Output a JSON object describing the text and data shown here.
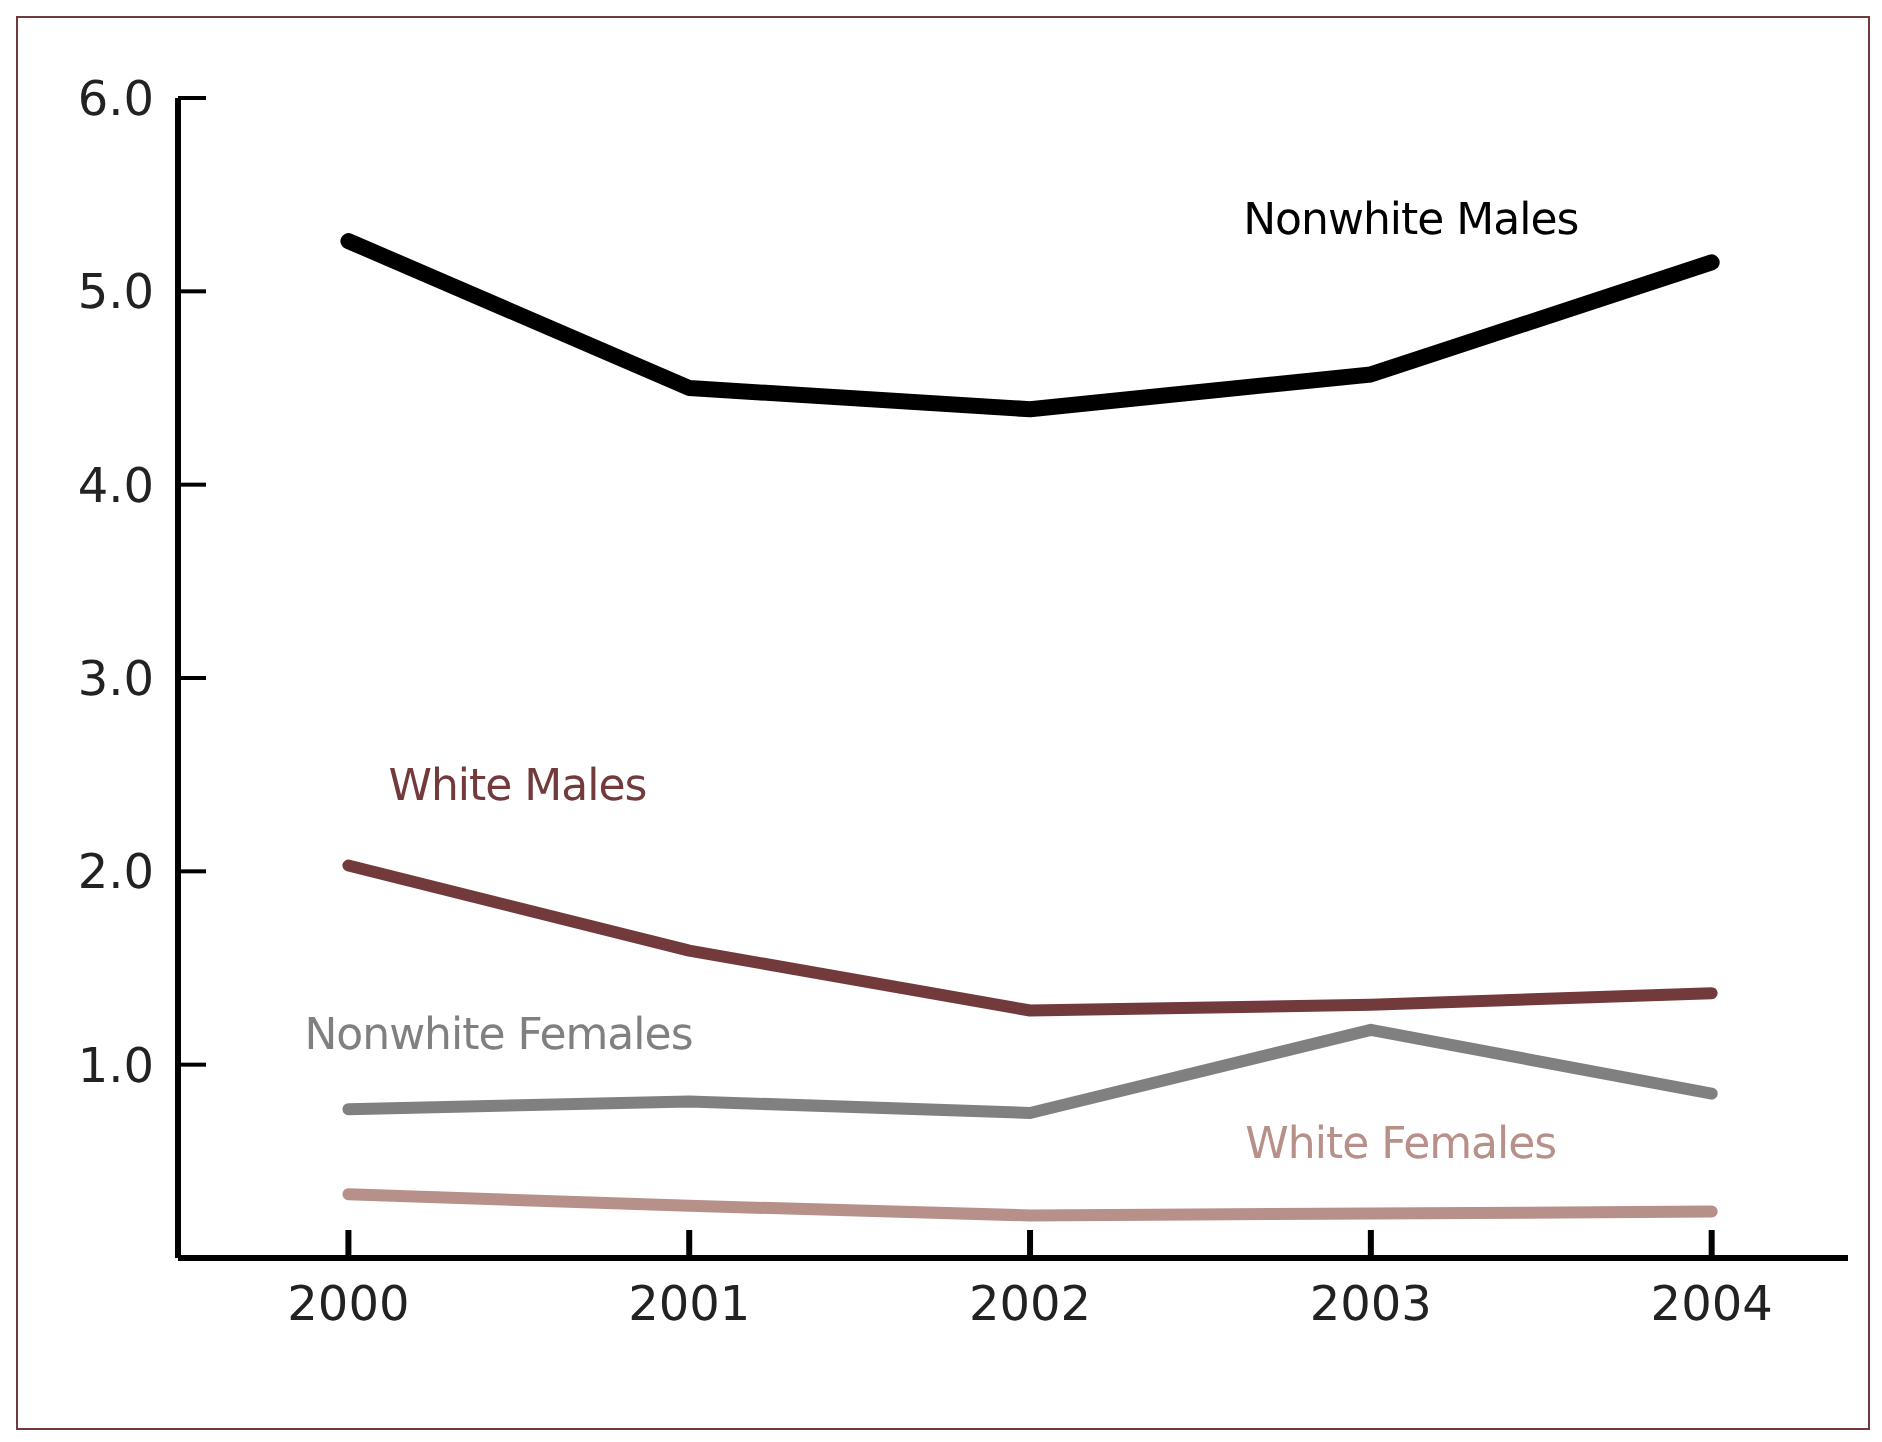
{
  "chart_data": {
    "type": "line",
    "categories": [
      "2000",
      "2001",
      "2002",
      "2003",
      "2004"
    ],
    "series": [
      {
        "name": "Nonwhite Males",
        "color": "#000000",
        "values": [
          5.26,
          4.5,
          4.39,
          4.57,
          5.15
        ]
      },
      {
        "name": "White Males",
        "color": "#733a3c",
        "values": [
          2.03,
          1.59,
          1.28,
          1.31,
          1.37
        ]
      },
      {
        "name": "Nonwhite Females",
        "color": "#808080",
        "values": [
          0.77,
          0.81,
          0.75,
          1.18,
          0.85
        ]
      },
      {
        "name": "White Females",
        "color": "#b8908a",
        "values": [
          0.33,
          0.27,
          0.22,
          0.23,
          0.24
        ]
      }
    ],
    "ylim": [
      0,
      6
    ],
    "yticks": [
      {
        "value": 1,
        "label": "1.0"
      },
      {
        "value": 2,
        "label": "2.0"
      },
      {
        "value": 3,
        "label": "3.0"
      },
      {
        "value": 4,
        "label": "4.0"
      },
      {
        "value": 5,
        "label": "5.0"
      },
      {
        "value": 6,
        "label": "6.0"
      }
    ],
    "grid": false,
    "marker": "none",
    "line_style": "solid"
  }
}
